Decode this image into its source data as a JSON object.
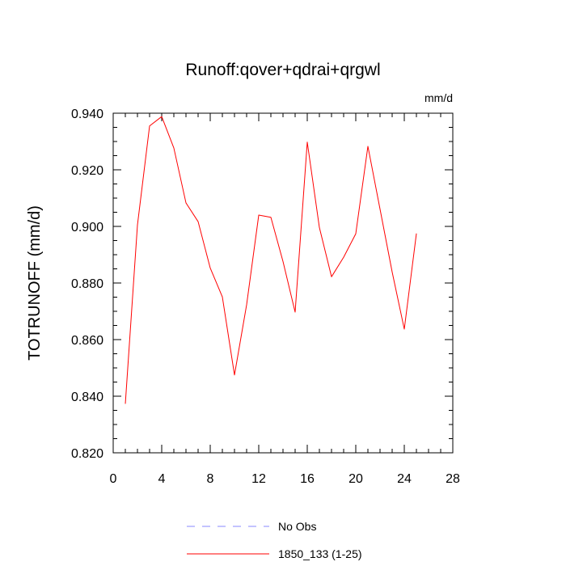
{
  "chart_data": {
    "type": "line",
    "title": "Runoff:qover+qdrai+qrgwl",
    "units": "mm/d",
    "xlabel": "",
    "ylabel": "TOTRUNOFF  (mm/d)",
    "xlim": [
      0,
      28
    ],
    "ylim": [
      0.82,
      0.94
    ],
    "x_ticks": [
      0,
      4,
      8,
      12,
      16,
      20,
      24,
      28
    ],
    "x_tick_labels": [
      "0",
      "4",
      "8",
      "12",
      "16",
      "20",
      "24",
      "28"
    ],
    "y_ticks": [
      0.82,
      0.84,
      0.86,
      0.88,
      0.9,
      0.92,
      0.94
    ],
    "y_tick_labels": [
      "0.820",
      "0.840",
      "0.860",
      "0.880",
      "0.900",
      "0.920",
      "0.940"
    ],
    "grid": false,
    "legend_position": "bottom",
    "series": [
      {
        "name": "1850_133 (1-25)",
        "color": "#ff0000",
        "dash": "solid",
        "x": [
          1,
          2,
          3,
          4,
          5,
          6,
          7,
          8,
          9,
          10,
          11,
          12,
          13,
          14,
          15,
          16,
          17,
          18,
          19,
          20,
          21,
          22,
          23,
          24,
          25
        ],
        "values": [
          0.8373,
          0.9005,
          0.9355,
          0.9388,
          0.9277,
          0.9083,
          0.9017,
          0.8853,
          0.8751,
          0.8475,
          0.8723,
          0.904,
          0.9032,
          0.8876,
          0.8697,
          0.9298,
          0.8996,
          0.8822,
          0.8891,
          0.8974,
          0.9283,
          0.9061,
          0.8839,
          0.8637,
          0.8975
        ]
      }
    ],
    "legend": [
      {
        "label": "No Obs",
        "color": "#8888ff",
        "dash": "dashed"
      },
      {
        "label": "1850_133 (1-25)",
        "color": "#ff0000",
        "dash": "solid"
      }
    ]
  }
}
